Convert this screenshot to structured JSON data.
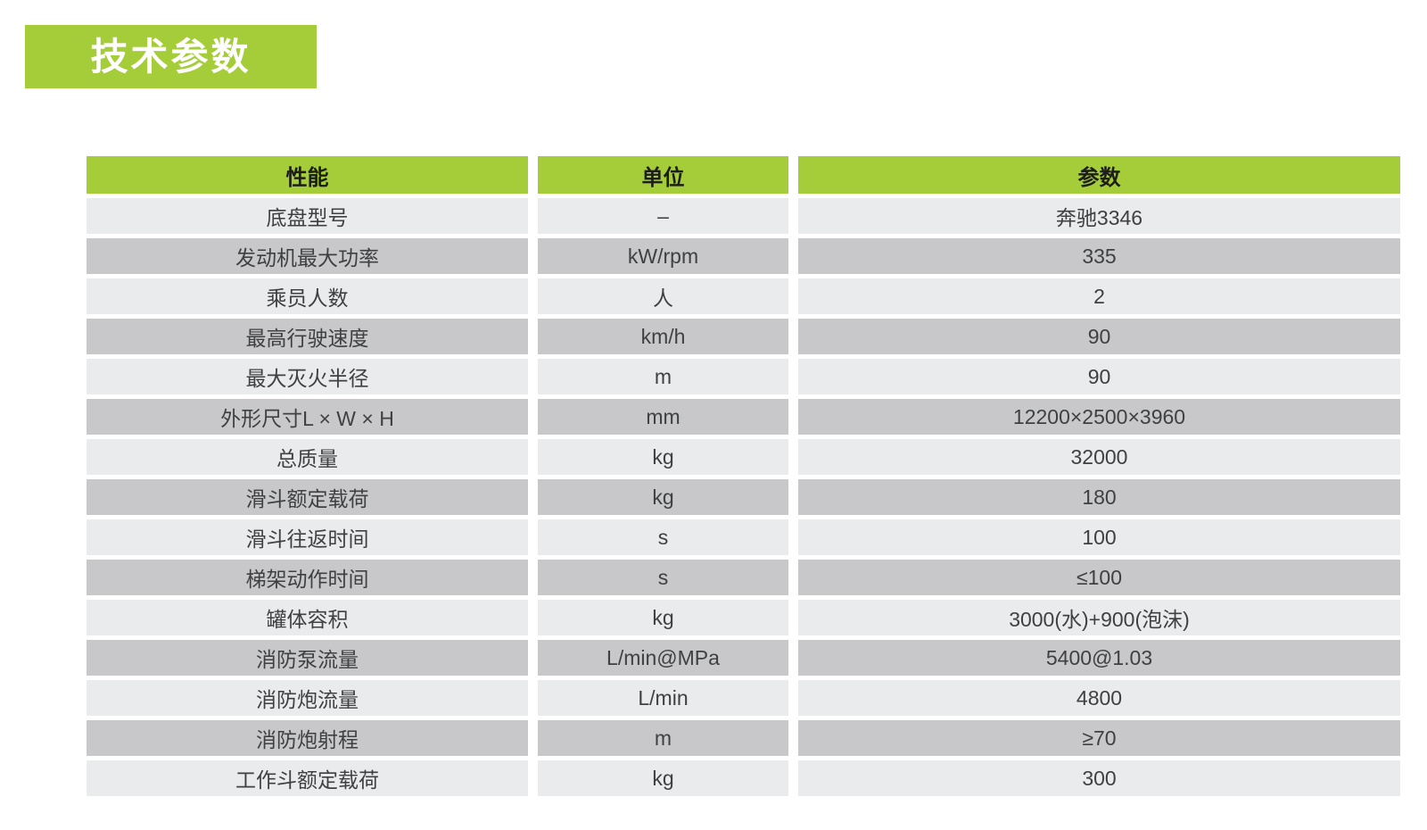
{
  "page": {
    "title": "技术参数"
  },
  "table": {
    "headers": [
      "性能",
      "单位",
      "参数"
    ],
    "rows": [
      {
        "name": "底盘型号",
        "unit": "–",
        "value": "奔驰3346"
      },
      {
        "name": "发动机最大功率",
        "unit": "kW/rpm",
        "value": "335"
      },
      {
        "name": "乘员人数",
        "unit": "人",
        "value": "2"
      },
      {
        "name": "最高行驶速度",
        "unit": "km/h",
        "value": "90"
      },
      {
        "name": "最大灭火半径",
        "unit": "m",
        "value": "90"
      },
      {
        "name": "外形尺寸L × W × H",
        "unit": "mm",
        "value": "12200×2500×3960"
      },
      {
        "name": "总质量",
        "unit": "kg",
        "value": "32000"
      },
      {
        "name": "滑斗额定载荷",
        "unit": "kg",
        "value": "180"
      },
      {
        "name": "滑斗往返时间",
        "unit": "s",
        "value": "100"
      },
      {
        "name": "梯架动作时间",
        "unit": "s",
        "value": "≤100"
      },
      {
        "name": "罐体容积",
        "unit": "kg",
        "value": "3000(水)+900(泡沫)"
      },
      {
        "name": "消防泵流量",
        "unit": "L/min@MPa",
        "value": "5400@1.03"
      },
      {
        "name": "消防炮流量",
        "unit": "L/min",
        "value": "4800"
      },
      {
        "name": "消防炮射程",
        "unit": "m",
        "value": "≥70"
      },
      {
        "name": "工作斗额定载荷",
        "unit": "kg",
        "value": "300"
      }
    ],
    "colors": {
      "header_bg": "#a5cd3a",
      "row_light": "#eaebed",
      "row_dark": "#c8c8ca",
      "text": "#3f4042",
      "header_text": "#1d1d1b",
      "title_text": "#ffffff"
    }
  }
}
